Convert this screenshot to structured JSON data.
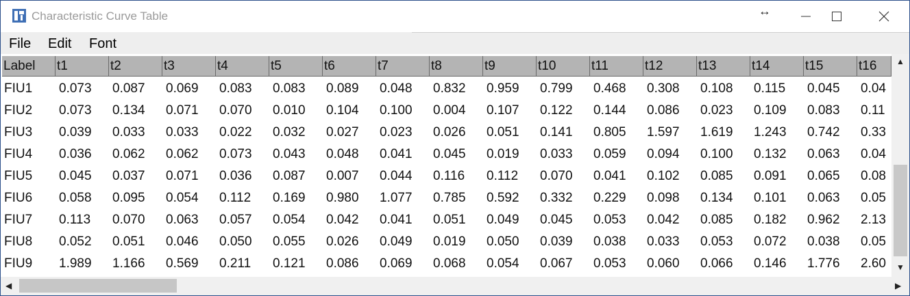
{
  "window": {
    "title": "Characteristic Curve Table",
    "controls": {
      "resize": "↔",
      "minimize": "—",
      "maximize": "☐",
      "close": "✕"
    }
  },
  "menu": [
    "File",
    "Edit",
    "Font"
  ],
  "table": {
    "columns": [
      "Label",
      "t1",
      "t2",
      "t3",
      "t4",
      "t5",
      "t6",
      "t7",
      "t8",
      "t9",
      "t10",
      "t11",
      "t12",
      "t13",
      "t14",
      "t15",
      "t16"
    ],
    "rows": [
      [
        "FIU1",
        "0.073",
        "0.087",
        "0.069",
        "0.083",
        "0.083",
        "0.089",
        "0.048",
        "0.832",
        "0.959",
        "0.799",
        "0.468",
        "0.308",
        "0.108",
        "0.115",
        "0.045",
        "0.04"
      ],
      [
        "FIU2",
        "0.073",
        "0.134",
        "0.071",
        "0.070",
        "0.010",
        "0.104",
        "0.100",
        "0.004",
        "0.107",
        "0.122",
        "0.144",
        "0.086",
        "0.023",
        "0.109",
        "0.083",
        "0.11"
      ],
      [
        "FIU3",
        "0.039",
        "0.033",
        "0.033",
        "0.022",
        "0.032",
        "0.027",
        "0.023",
        "0.026",
        "0.051",
        "0.141",
        "0.805",
        "1.597",
        "1.619",
        "1.243",
        "0.742",
        "0.33"
      ],
      [
        "FIU4",
        "0.036",
        "0.062",
        "0.062",
        "0.073",
        "0.043",
        "0.048",
        "0.041",
        "0.045",
        "0.019",
        "0.033",
        "0.059",
        "0.094",
        "0.100",
        "0.132",
        "0.063",
        "0.04"
      ],
      [
        "FIU5",
        "0.045",
        "0.037",
        "0.071",
        "0.036",
        "0.087",
        "0.007",
        "0.044",
        "0.116",
        "0.112",
        "0.070",
        "0.041",
        "0.102",
        "0.085",
        "0.091",
        "0.065",
        "0.08"
      ],
      [
        "FIU6",
        "0.058",
        "0.095",
        "0.054",
        "0.112",
        "0.169",
        "0.980",
        "1.077",
        "0.785",
        "0.592",
        "0.332",
        "0.229",
        "0.098",
        "0.134",
        "0.101",
        "0.063",
        "0.05"
      ],
      [
        "FIU7",
        "0.113",
        "0.070",
        "0.063",
        "0.057",
        "0.054",
        "0.042",
        "0.041",
        "0.051",
        "0.049",
        "0.045",
        "0.053",
        "0.042",
        "0.085",
        "0.182",
        "0.962",
        "2.13"
      ],
      [
        "FIU8",
        "0.052",
        "0.051",
        "0.046",
        "0.050",
        "0.055",
        "0.026",
        "0.049",
        "0.019",
        "0.050",
        "0.039",
        "0.038",
        "0.033",
        "0.053",
        "0.072",
        "0.038",
        "0.05"
      ],
      [
        "FIU9",
        "1.989",
        "1.166",
        "0.569",
        "0.211",
        "0.121",
        "0.086",
        "0.069",
        "0.068",
        "0.054",
        "0.067",
        "0.053",
        "0.060",
        "0.066",
        "0.146",
        "1.776",
        "2.60"
      ]
    ]
  },
  "scroll": {
    "up": "▲",
    "down": "▼",
    "left": "◀",
    "right": "▶",
    "vertical_position": 0.35,
    "horizontal_position": 0.0
  }
}
